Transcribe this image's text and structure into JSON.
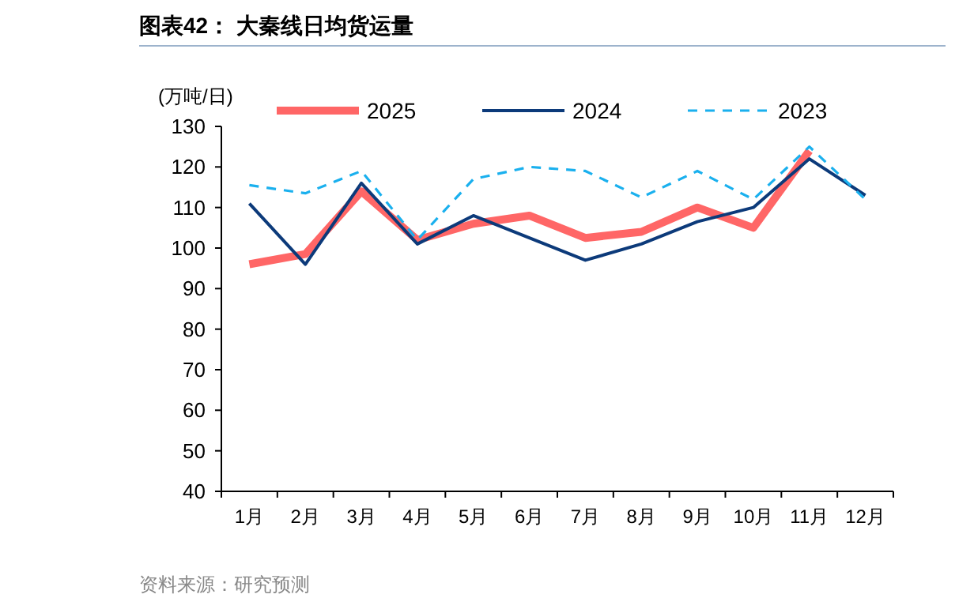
{
  "chart_data": {
    "type": "line",
    "title": "图表42：  大秦线日均货运量",
    "ylabel": "(万吨/日)",
    "categories": [
      "1月",
      "2月",
      "3月",
      "4月",
      "5月",
      "6月",
      "7月",
      "8月",
      "9月",
      "10月",
      "11月",
      "12月"
    ],
    "series": [
      {
        "name": "2025",
        "color": "#ff6666",
        "line_style": "solid",
        "values": [
          96,
          98.5,
          114,
          102,
          106,
          108,
          102.5,
          104,
          110,
          105,
          124,
          null
        ]
      },
      {
        "name": "2024",
        "color": "#0c3a7a",
        "line_style": "solid",
        "values": [
          111,
          96,
          116,
          101,
          108,
          102.5,
          97,
          101,
          106.5,
          110,
          122,
          113
        ]
      },
      {
        "name": "2023",
        "color": "#1ab0ee",
        "line_style": "dashed",
        "values": [
          115.5,
          113.5,
          119,
          102,
          117,
          120,
          119,
          112.5,
          119,
          112,
          125,
          112
        ]
      }
    ],
    "ylim": [
      40,
      130
    ],
    "yticks": [
      40,
      50,
      60,
      70,
      80,
      90,
      100,
      110,
      120,
      130
    ],
    "grid": false,
    "legend": "top",
    "marker": "none",
    "annotations": [
      "资料来源：研究预测"
    ]
  }
}
